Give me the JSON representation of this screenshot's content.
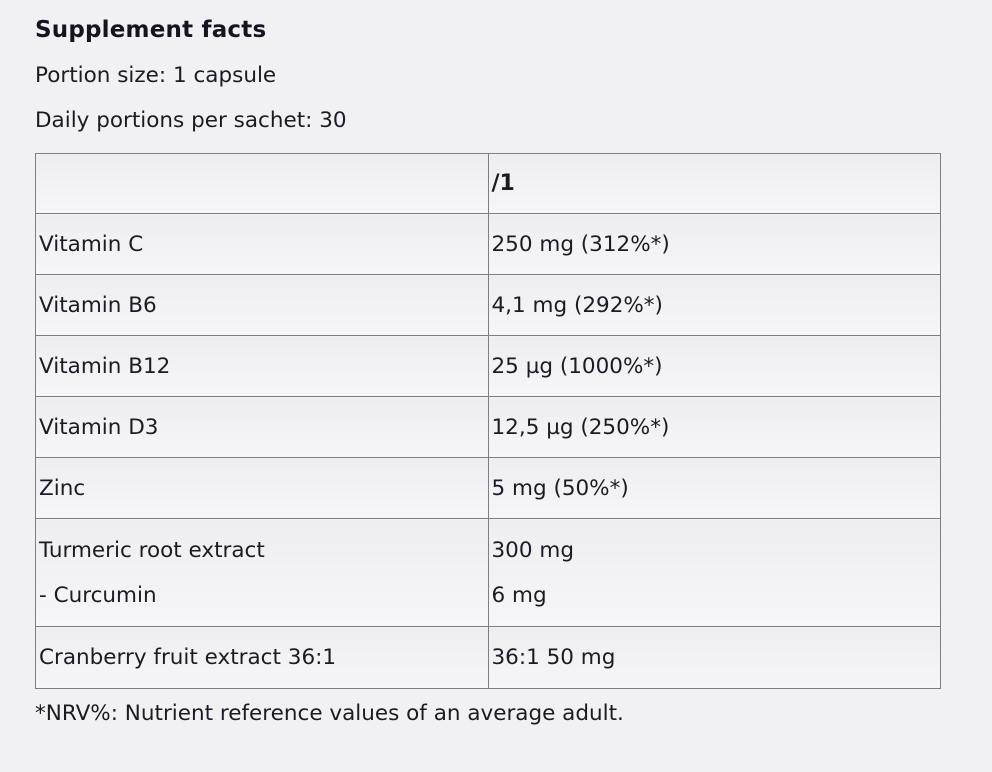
{
  "colors": {
    "background": "#f1f1f3",
    "text": "#1b1b25",
    "border": "#7d7d85"
  },
  "header": {
    "title": "Supplement facts",
    "portion_size": "Portion size: 1 capsule",
    "daily_portions": "Daily portions per sachet: 30"
  },
  "table": {
    "columns": [
      "",
      "/1"
    ],
    "rows": [
      {
        "name": [
          "Vitamin C"
        ],
        "values": [
          "250 mg (312%*)"
        ]
      },
      {
        "name": [
          "Vitamin B6"
        ],
        "values": [
          "4,1 mg (292%*)"
        ]
      },
      {
        "name": [
          "Vitamin B12"
        ],
        "values": [
          "25 µg (1000%*)"
        ]
      },
      {
        "name": [
          "Vitamin D3"
        ],
        "values": [
          "12,5 µg (250%*)"
        ]
      },
      {
        "name": [
          "Zinc"
        ],
        "values": [
          "5 mg (50%*)"
        ]
      },
      {
        "name": [
          "Turmeric root extract",
          "- Curcumin"
        ],
        "values": [
          "300 mg",
          "6 mg"
        ]
      },
      {
        "name": [
          "Cranberry fruit extract 36:1"
        ],
        "values": [
          "36:1 50 mg"
        ]
      }
    ]
  },
  "footnote": "*NRV%: Nutrient reference values of an average adult."
}
